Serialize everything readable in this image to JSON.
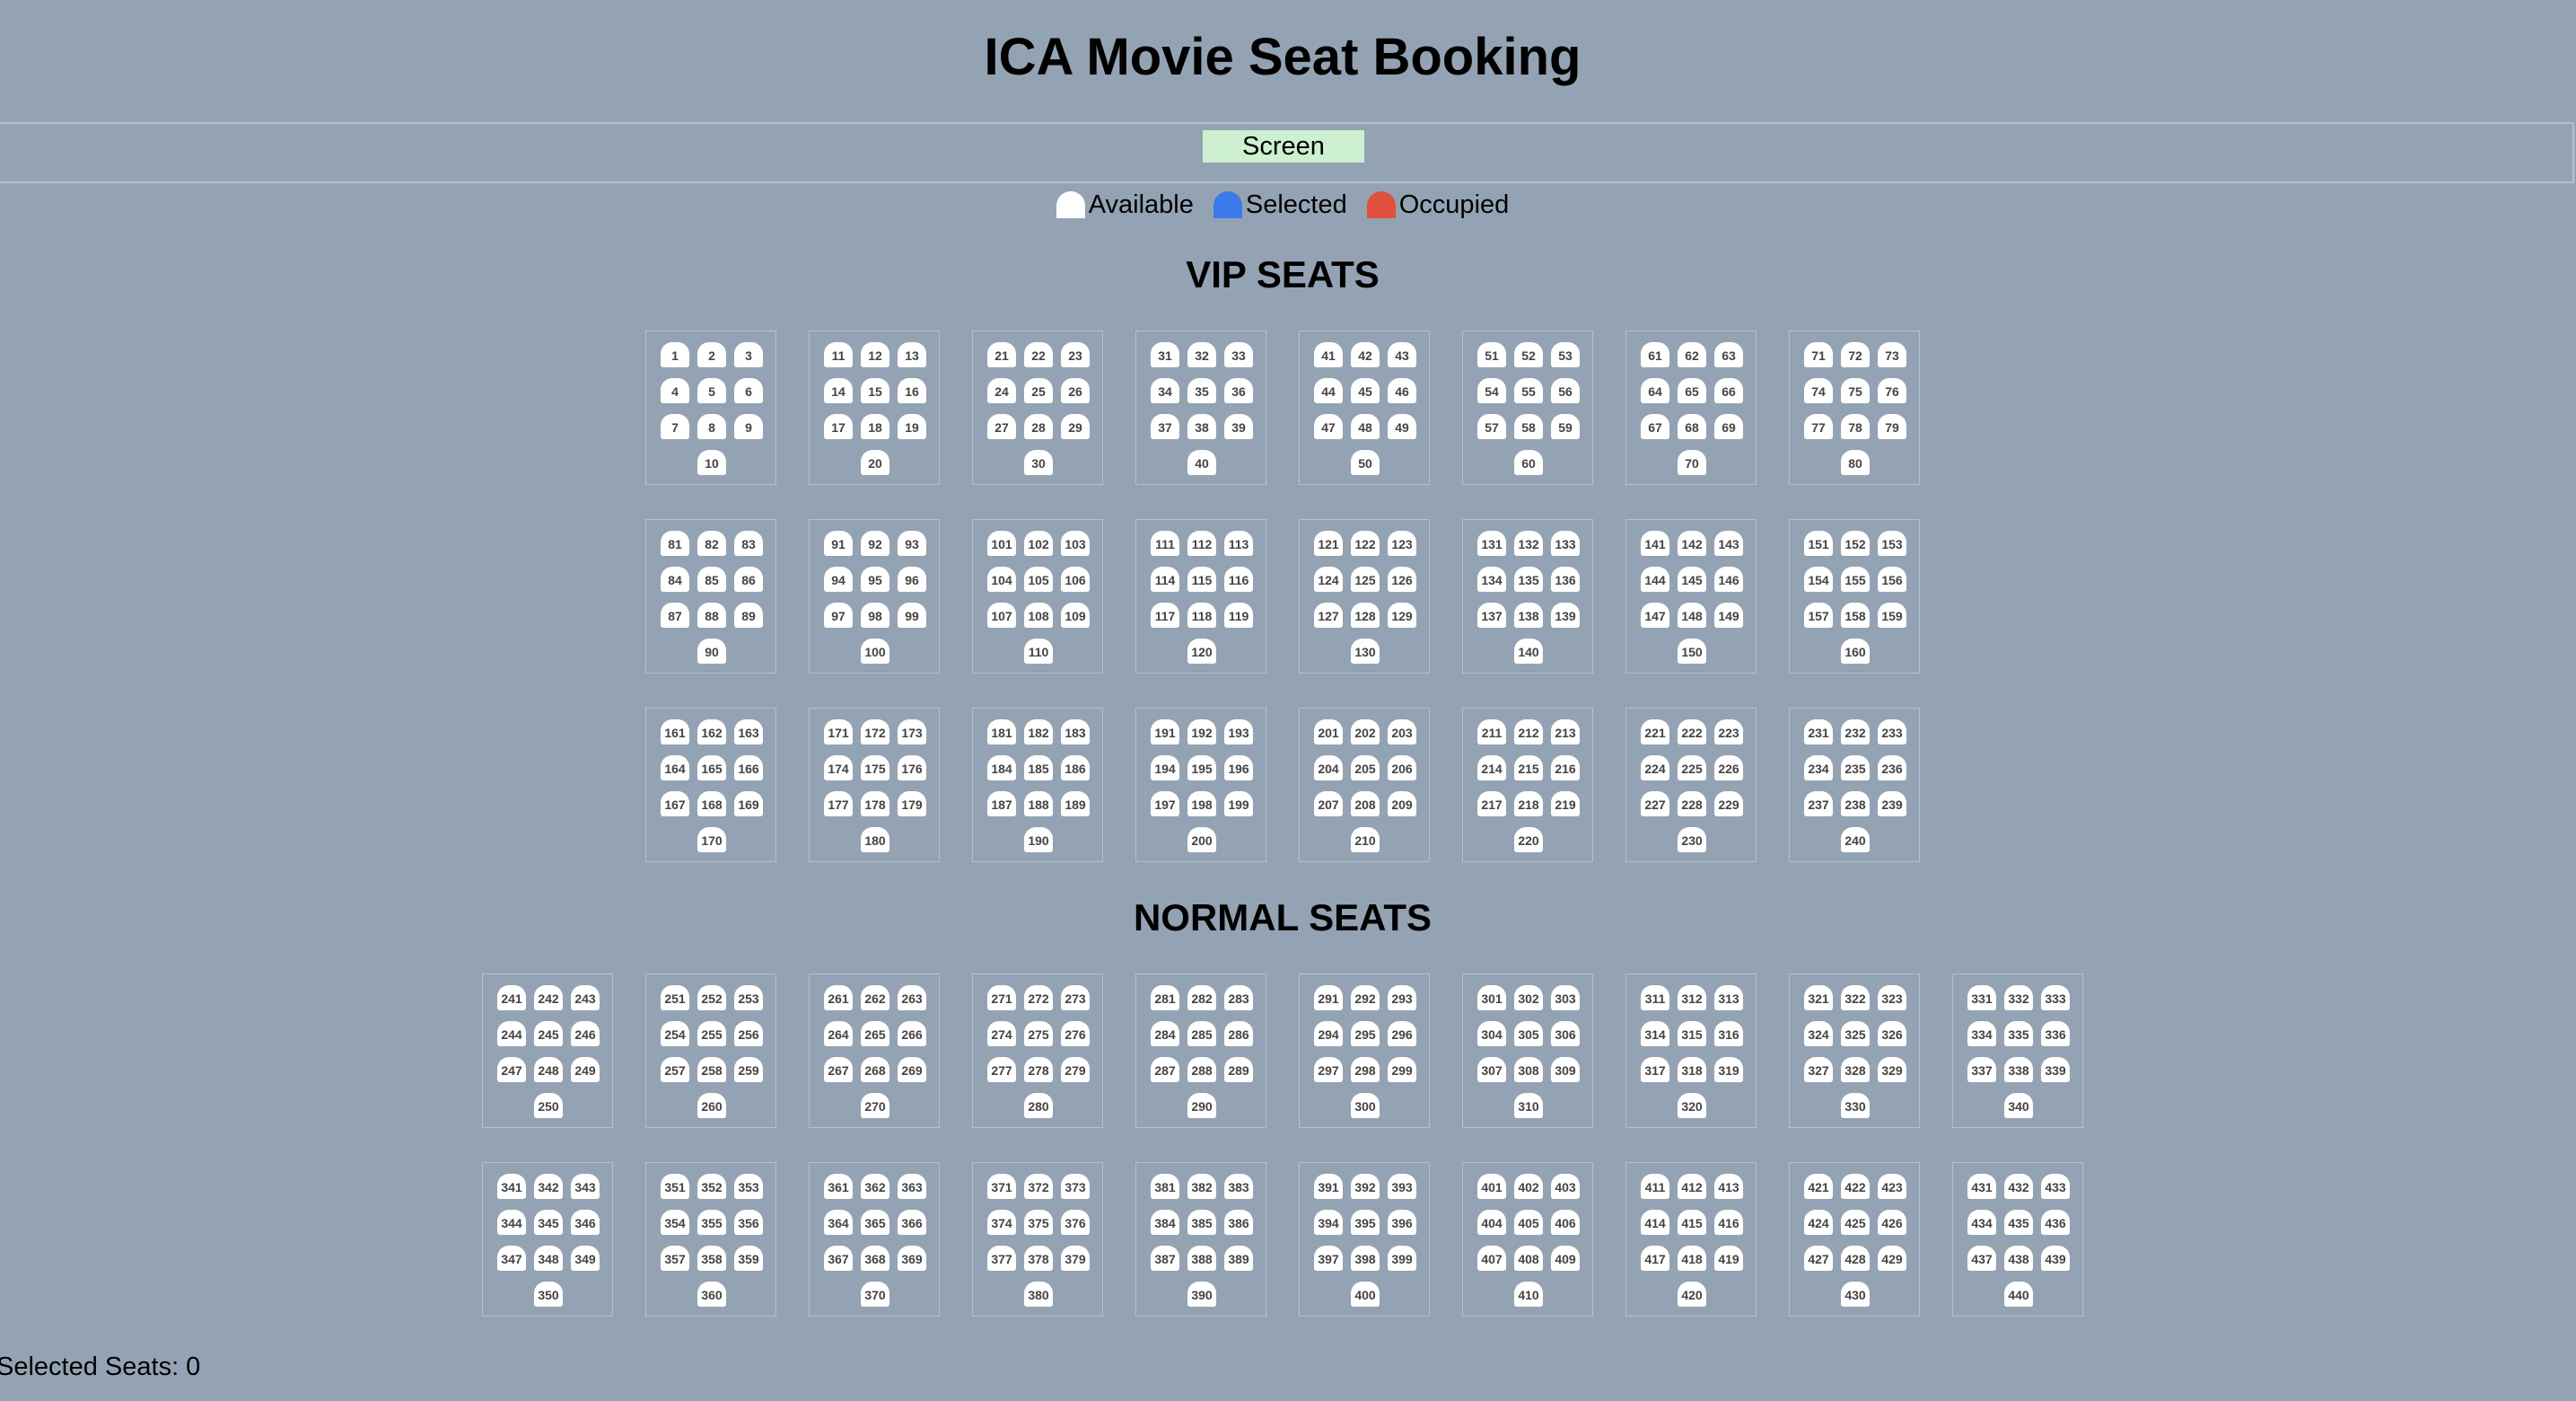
{
  "header": {
    "title": "ICA Movie Seat Booking"
  },
  "screen": {
    "label": "Screen"
  },
  "legend": [
    {
      "label": "Available",
      "color": "#ffffff"
    },
    {
      "label": "Selected",
      "color": "#3b7ae8"
    },
    {
      "label": "Occupied",
      "color": "#e0503f"
    }
  ],
  "vip": {
    "title": "VIP SEATS",
    "rows": [
      [
        [
          "1",
          "2",
          "3",
          "4",
          "5",
          "6",
          "7",
          "8",
          "9",
          "10"
        ],
        [
          "11",
          "12",
          "13",
          "14",
          "15",
          "16",
          "17",
          "18",
          "19",
          "20"
        ],
        [
          "21",
          "22",
          "23",
          "24",
          "25",
          "26",
          "27",
          "28",
          "29",
          "30"
        ],
        [
          "31",
          "32",
          "33",
          "34",
          "35",
          "36",
          "37",
          "38",
          "39",
          "40"
        ],
        [
          "41",
          "42",
          "43",
          "44",
          "45",
          "46",
          "47",
          "48",
          "49",
          "50"
        ],
        [
          "51",
          "52",
          "53",
          "54",
          "55",
          "56",
          "57",
          "58",
          "59",
          "60"
        ],
        [
          "61",
          "62",
          "63",
          "64",
          "65",
          "66",
          "67",
          "68",
          "69",
          "70"
        ],
        [
          "71",
          "72",
          "73",
          "74",
          "75",
          "76",
          "77",
          "78",
          "79",
          "80"
        ]
      ],
      [
        [
          "81",
          "82",
          "83",
          "84",
          "85",
          "86",
          "87",
          "88",
          "89",
          "90"
        ],
        [
          "91",
          "92",
          "93",
          "94",
          "95",
          "96",
          "97",
          "98",
          "99",
          "100"
        ],
        [
          "101",
          "102",
          "103",
          "104",
          "105",
          "106",
          "107",
          "108",
          "109",
          "110"
        ],
        [
          "111",
          "112",
          "113",
          "114",
          "115",
          "116",
          "117",
          "118",
          "119",
          "120"
        ],
        [
          "121",
          "122",
          "123",
          "124",
          "125",
          "126",
          "127",
          "128",
          "129",
          "130"
        ],
        [
          "131",
          "132",
          "133",
          "134",
          "135",
          "136",
          "137",
          "138",
          "139",
          "140"
        ],
        [
          "141",
          "142",
          "143",
          "144",
          "145",
          "146",
          "147",
          "148",
          "149",
          "150"
        ],
        [
          "151",
          "152",
          "153",
          "154",
          "155",
          "156",
          "157",
          "158",
          "159",
          "160"
        ]
      ],
      [
        [
          "161",
          "162",
          "163",
          "164",
          "165",
          "166",
          "167",
          "168",
          "169",
          "170"
        ],
        [
          "171",
          "172",
          "173",
          "174",
          "175",
          "176",
          "177",
          "178",
          "179",
          "180"
        ],
        [
          "181",
          "182",
          "183",
          "184",
          "185",
          "186",
          "187",
          "188",
          "189",
          "190"
        ],
        [
          "191",
          "192",
          "193",
          "194",
          "195",
          "196",
          "197",
          "198",
          "199",
          "200"
        ],
        [
          "201",
          "202",
          "203",
          "204",
          "205",
          "206",
          "207",
          "208",
          "209",
          "210"
        ],
        [
          "211",
          "212",
          "213",
          "214",
          "215",
          "216",
          "217",
          "218",
          "219",
          "220"
        ],
        [
          "221",
          "222",
          "223",
          "224",
          "225",
          "226",
          "227",
          "228",
          "229",
          "230"
        ],
        [
          "231",
          "232",
          "233",
          "234",
          "235",
          "236",
          "237",
          "238",
          "239",
          "240"
        ]
      ]
    ]
  },
  "normal": {
    "title": "NORMAL SEATS",
    "rows": [
      [
        [
          "241",
          "242",
          "243",
          "244",
          "245",
          "246",
          "247",
          "248",
          "249",
          "250"
        ],
        [
          "251",
          "252",
          "253",
          "254",
          "255",
          "256",
          "257",
          "258",
          "259",
          "260"
        ],
        [
          "261",
          "262",
          "263",
          "264",
          "265",
          "266",
          "267",
          "268",
          "269",
          "270"
        ],
        [
          "271",
          "272",
          "273",
          "274",
          "275",
          "276",
          "277",
          "278",
          "279",
          "280"
        ],
        [
          "281",
          "282",
          "283",
          "284",
          "285",
          "286",
          "287",
          "288",
          "289",
          "290"
        ],
        [
          "291",
          "292",
          "293",
          "294",
          "295",
          "296",
          "297",
          "298",
          "299",
          "300"
        ],
        [
          "301",
          "302",
          "303",
          "304",
          "305",
          "306",
          "307",
          "308",
          "309",
          "310"
        ],
        [
          "311",
          "312",
          "313",
          "314",
          "315",
          "316",
          "317",
          "318",
          "319",
          "320"
        ],
        [
          "321",
          "322",
          "323",
          "324",
          "325",
          "326",
          "327",
          "328",
          "329",
          "330"
        ],
        [
          "331",
          "332",
          "333",
          "334",
          "335",
          "336",
          "337",
          "338",
          "339",
          "340"
        ]
      ],
      [
        [
          "341",
          "342",
          "343",
          "344",
          "345",
          "346",
          "347",
          "348",
          "349",
          "350"
        ],
        [
          "351",
          "352",
          "353",
          "354",
          "355",
          "356",
          "357",
          "358",
          "359",
          "360"
        ],
        [
          "361",
          "362",
          "363",
          "364",
          "365",
          "366",
          "367",
          "368",
          "369",
          "370"
        ],
        [
          "371",
          "372",
          "373",
          "374",
          "375",
          "376",
          "377",
          "378",
          "379",
          "380"
        ],
        [
          "381",
          "382",
          "383",
          "384",
          "385",
          "386",
          "387",
          "388",
          "389",
          "390"
        ],
        [
          "391",
          "392",
          "393",
          "394",
          "395",
          "396",
          "397",
          "398",
          "399",
          "400"
        ],
        [
          "401",
          "402",
          "403",
          "404",
          "405",
          "406",
          "407",
          "408",
          "409",
          "410"
        ],
        [
          "411",
          "412",
          "413",
          "414",
          "415",
          "416",
          "417",
          "418",
          "419",
          "420"
        ],
        [
          "421",
          "422",
          "423",
          "424",
          "425",
          "426",
          "427",
          "428",
          "429",
          "430"
        ],
        [
          "431",
          "432",
          "433",
          "434",
          "435",
          "436",
          "437",
          "438",
          "439",
          "440"
        ]
      ]
    ]
  },
  "footer": {
    "selected_text": "Selected Seats: 0"
  }
}
